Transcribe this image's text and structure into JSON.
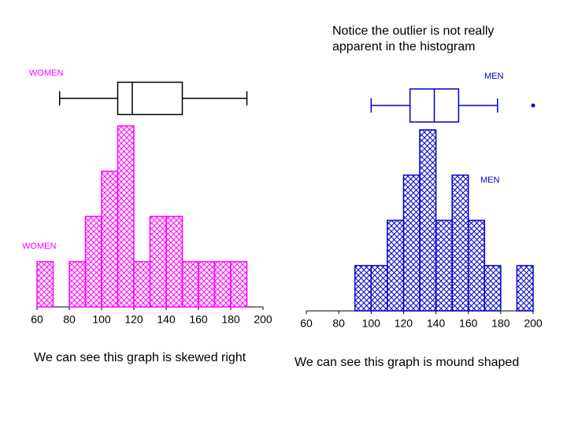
{
  "note": "Notice the outlier is not really apparent in the histogram",
  "chart_data": [
    {
      "type": "histogram",
      "label": "WOMEN",
      "color": "#ff00ff",
      "bins": [
        60,
        70,
        80,
        90,
        100,
        110,
        120,
        130,
        140,
        150,
        160,
        170,
        180,
        190
      ],
      "values": [
        1,
        0,
        1,
        2,
        3,
        4,
        1,
        2,
        2,
        1,
        1,
        1,
        1
      ],
      "xlim": [
        60,
        200
      ],
      "xticks": [
        60,
        80,
        100,
        120,
        140,
        160,
        180,
        200
      ],
      "boxplot": {
        "label": "WOMEN",
        "color": "#000000",
        "min": 74,
        "q1": 110,
        "median": 119,
        "q3": 150,
        "max": 190
      },
      "caption": "We can see this graph is skewed right"
    },
    {
      "type": "histogram",
      "label": "MEN",
      "color": "#0000cc",
      "bins": [
        90,
        100,
        110,
        120,
        130,
        140,
        150,
        160,
        170,
        180,
        190,
        200
      ],
      "values": [
        1,
        1,
        2,
        3,
        4,
        2,
        3,
        2,
        1,
        0,
        1
      ],
      "xlim": [
        60,
        200
      ],
      "xticks": [
        60,
        80,
        100,
        120,
        140,
        160,
        180,
        200
      ],
      "boxplot": {
        "label": "MEN",
        "color": "#0000cc",
        "min": 100,
        "q1": 124,
        "median": 139,
        "q3": 154,
        "max": 178,
        "outliers": [
          200
        ]
      },
      "caption": "We can see this graph is mound shaped"
    }
  ]
}
